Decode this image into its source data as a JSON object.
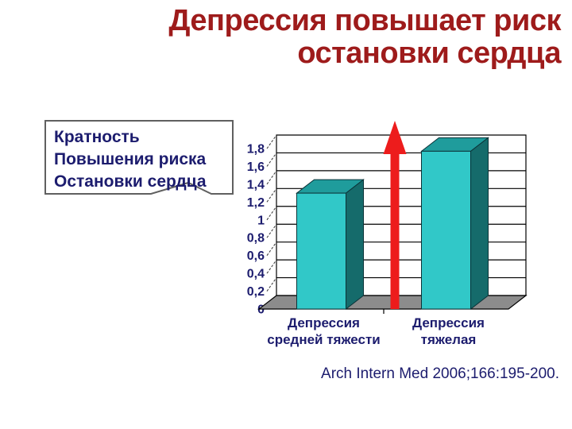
{
  "slide": {
    "title_line1": "Депрессия повышает риск",
    "title_line2": "остановки сердца",
    "callout_lines": [
      "Кратность",
      "Повышения риска",
      "Остановки сердца"
    ],
    "citation": "Arch Intern Med 2006;166:195-200."
  },
  "colors": {
    "background": "#FFFFFF",
    "title": "#9E1B1B",
    "text_navy": "#1C1C6E",
    "bar_front": "#31C8C8",
    "bar_top": "#1F9C9C",
    "bar_side": "#156B6B",
    "bar_outline": "#0B3338",
    "floor": "#8C8C8C",
    "grid_line": "#000000",
    "leader_line": "#333333",
    "arrow_red": "#ED1C1C",
    "callout_border": "#606060"
  },
  "chart_data": {
    "type": "bar",
    "style": "3d-column",
    "title": "",
    "xlabel": "",
    "ylabel": "",
    "categories": [
      "Депрессия\nсредней тяжести",
      "Депрессия\nтяжелая"
    ],
    "values": [
      1.3,
      1.77
    ],
    "ylim": [
      0,
      1.8
    ],
    "ytick_step": 0.2,
    "ytick_labels": [
      "0",
      "0,2",
      "0,4",
      "0,6",
      "0,8",
      "1",
      "1,2",
      "1,4",
      "1,6",
      "1,8"
    ],
    "grid": true,
    "legend": false,
    "annotation": "red upward arrow between the bars emphasizing risk increase"
  }
}
